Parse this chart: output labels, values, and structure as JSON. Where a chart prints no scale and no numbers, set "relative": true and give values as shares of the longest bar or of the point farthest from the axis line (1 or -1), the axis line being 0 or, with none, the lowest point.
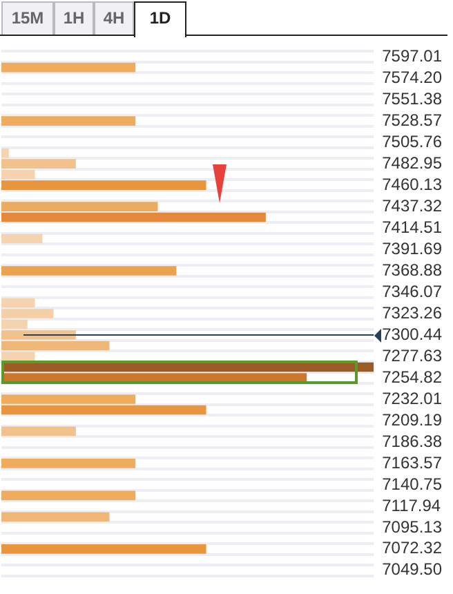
{
  "chart_data": {
    "type": "bar",
    "orientation": "horizontal",
    "relative": true,
    "categories": [
      "7597.01",
      null,
      "7574.20",
      null,
      "7551.38",
      null,
      "7528.57",
      null,
      "7505.76",
      null,
      "7482.95",
      null,
      "7460.13",
      null,
      "7437.32",
      null,
      "7414.51",
      null,
      "7391.69",
      null,
      "7368.88",
      null,
      "7346.07",
      null,
      "7323.26",
      null,
      "7300.44",
      null,
      "7277.63",
      null,
      "7254.82",
      null,
      "7232.01",
      null,
      "7209.19",
      null,
      "7186.38",
      null,
      "7163.57",
      null,
      "7140.75",
      null,
      "7117.94",
      null,
      "7095.13",
      null,
      "7072.32",
      null,
      "7049.50"
    ],
    "values": [
      null,
      0.36,
      null,
      null,
      null,
      null,
      0.36,
      null,
      null,
      0.02,
      0.2,
      0.09,
      0.55,
      null,
      0.42,
      0.71,
      null,
      0.11,
      null,
      null,
      0.47,
      null,
      null,
      0.09,
      0.14,
      0.07,
      0.2,
      0.29,
      0.09,
      1,
      0.82,
      null,
      0.36,
      0.55,
      null,
      0.2,
      null,
      null,
      0.36,
      null,
      null,
      0.36,
      null,
      0.29,
      null,
      null,
      0.55,
      null,
      null
    ],
    "colors": [
      null,
      "#eeac5c",
      null,
      null,
      null,
      null,
      "#eeac5c",
      null,
      null,
      "#f5d3ae",
      "#f2c28c",
      "#f5d3ae",
      "#e8953e",
      null,
      "#edab60",
      "#e4883a",
      null,
      "#f5d3ae",
      null,
      null,
      "#eba24f",
      null,
      null,
      "#f5d3ae",
      "#f5cfa5",
      "#f5d3ae",
      "#f2c28c",
      "#f0b878",
      "#f5d3ae",
      "#9c5a25",
      "#cd772e",
      null,
      "#eeac5c",
      "#e8953e",
      null,
      "#f2c28c",
      null,
      null,
      "#eeac5c",
      null,
      null,
      "#eeac5c",
      null,
      "#f0b878",
      null,
      null,
      "#e8953e",
      null,
      null
    ],
    "grid": "y",
    "legend": false,
    "tick_labels": "y",
    "ref_lines": [
      {
        "axis": "y",
        "value": "7300.44",
        "color": "#2b3e5a"
      }
    ],
    "annotations": [
      "15M",
      "1H",
      "4H",
      "1D"
    ]
  }
}
